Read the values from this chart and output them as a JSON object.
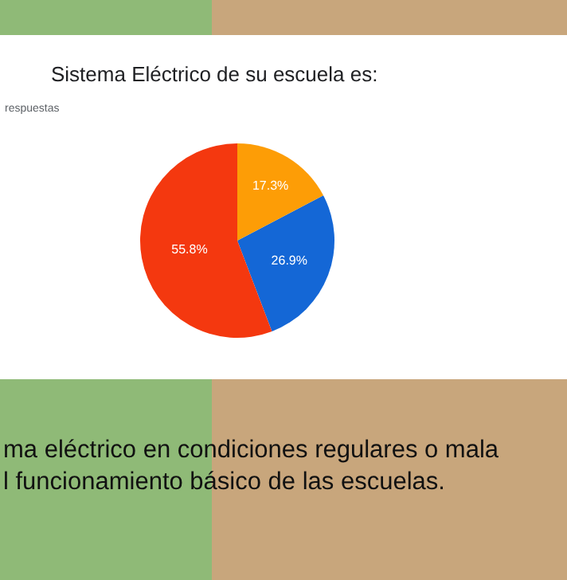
{
  "chart_data": {
    "type": "pie",
    "title": "Sistema Eléctrico de su escuela es:",
    "subtitle": "respuestas",
    "categories": [
      null,
      null,
      null
    ],
    "values": [
      26.9,
      55.8,
      17.3
    ],
    "value_labels": [
      "26.9%",
      "55.8%",
      "17.3%"
    ],
    "colors": [
      "#1467d6",
      "#f4380f",
      "#fd9d06"
    ],
    "annotations": [
      "ma eléctrico en condiciones regulares o mala\nl funcionamiento básico de las escuelas."
    ]
  }
}
